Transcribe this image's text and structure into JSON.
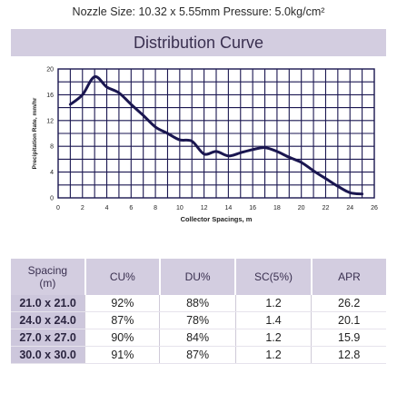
{
  "subtitle": "Nozzle Size: 10.32 x 5.55mm   Pressure: 5.0kg/cm²",
  "colors": {
    "header_bg": "#d3cde0",
    "curve": "#1a1650",
    "grid": "#1a1650",
    "plot_bg": "#ffffff"
  },
  "chart_data": {
    "type": "line",
    "title": "Distribution Curve",
    "xlabel": "Collector Spacings, m",
    "ylabel": "Precipitation Rate, mm/hr",
    "xlim": [
      0,
      26
    ],
    "ylim": [
      0,
      20
    ],
    "xticks": [
      "0",
      "2",
      "4",
      "6",
      "8",
      "10",
      "12",
      "14",
      "16",
      "18",
      "20",
      "22",
      "24",
      "26"
    ],
    "yticks": [
      "0",
      "4",
      "8",
      "12",
      "16",
      "20"
    ],
    "grid": true,
    "series": [
      {
        "x": [
          1,
          2,
          3,
          4,
          5,
          6,
          7,
          8,
          9,
          10,
          11,
          12,
          13,
          14,
          15,
          16,
          17,
          18,
          19,
          20,
          21,
          22,
          23,
          24,
          25
        ],
        "y": [
          14.5,
          16,
          18.8,
          17.2,
          16.3,
          14.5,
          12.8,
          11,
          10,
          9,
          8.8,
          6.8,
          7.2,
          6.5,
          7,
          7.5,
          7.8,
          7.2,
          6.3,
          5.5,
          4.2,
          3,
          1.8,
          0.8,
          0.6
        ]
      }
    ]
  },
  "table": {
    "headers": [
      "Spacing\n(m)",
      "CU%",
      "DU%",
      "SC(5%)",
      "APR"
    ],
    "rows": [
      [
        "21.0 x 21.0",
        "92%",
        "88%",
        "1.2",
        "26.2"
      ],
      [
        "24.0 x 24.0",
        "87%",
        "78%",
        "1.4",
        "20.1"
      ],
      [
        "27.0 x 27.0",
        "90%",
        "84%",
        "1.2",
        "15.9"
      ],
      [
        "30.0 x 30.0",
        "91%",
        "87%",
        "1.2",
        "12.8"
      ]
    ]
  }
}
